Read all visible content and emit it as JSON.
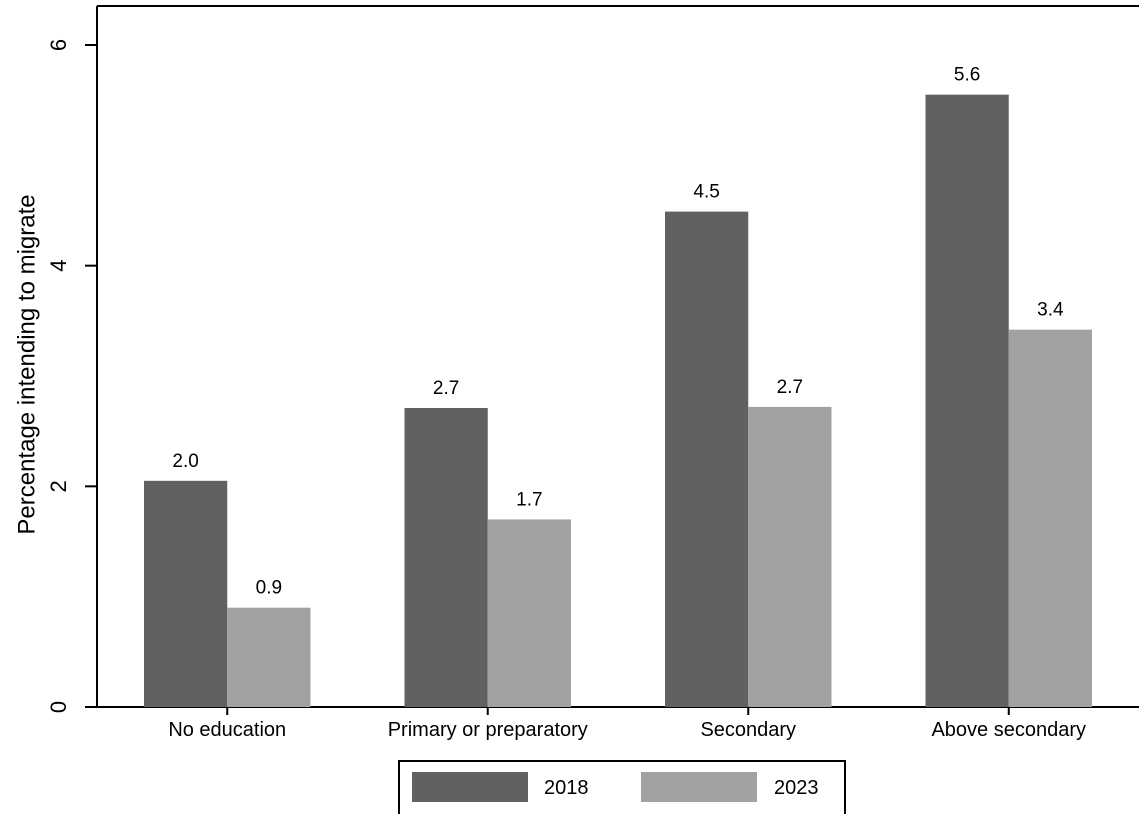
{
  "chart_data": {
    "type": "bar",
    "title": "",
    "xlabel": "",
    "ylabel": "Percentage intending to migrate",
    "ylim": [
      0,
      6
    ],
    "yticks": [
      0,
      2,
      4,
      6
    ],
    "grid": false,
    "legend_position": "bottom",
    "categories": [
      "No education",
      "Primary or preparatory",
      "Secondary",
      "Above secondary"
    ],
    "series": [
      {
        "name": "2018",
        "color": "#616161",
        "values": [
          2.05,
          2.71,
          4.49,
          5.55
        ],
        "labels": [
          "2.0",
          "2.7",
          "4.5",
          "5.6"
        ]
      },
      {
        "name": "2023",
        "color": "#a2a2a2",
        "values": [
          0.9,
          1.7,
          2.72,
          3.42
        ],
        "labels": [
          "0.9",
          "1.7",
          "2.7",
          "3.4"
        ]
      }
    ]
  }
}
